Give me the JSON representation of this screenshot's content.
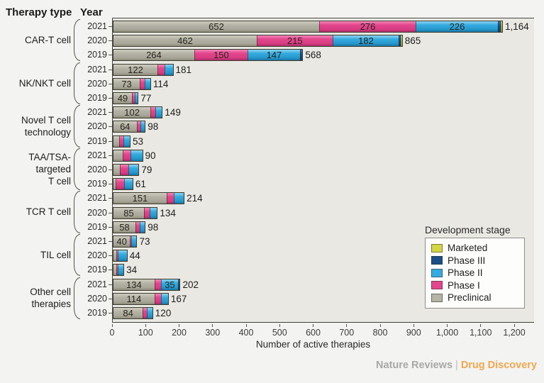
{
  "header": {
    "therapy_type": "Therapy type",
    "year": "Year"
  },
  "footer": {
    "journal": "Nature Reviews",
    "separator": "|",
    "publication": "Drug Discovery"
  },
  "chart_data": {
    "type": "bar",
    "orientation": "horizontal",
    "stacked": true,
    "xlabel": "Number of active therapies",
    "xlim": [
      0,
      1250
    ],
    "xtick_values": [
      0,
      100,
      200,
      300,
      400,
      500,
      600,
      700,
      800,
      900,
      1000,
      1100,
      1200
    ],
    "xtick_labels": [
      "0",
      "100",
      "200",
      "300",
      "400",
      "500",
      "600",
      "700",
      "800",
      "900",
      "1,000",
      "1,100",
      "1,200"
    ],
    "stage_order": [
      "preclinical",
      "phase1",
      "phase2",
      "phase3",
      "marketed"
    ],
    "stage_colors": {
      "preclinical": "#b5b3a5",
      "phase1": "#e2468c",
      "phase2": "#35abdf",
      "phase3": "#1b4f87",
      "marketed": "#d4d545"
    },
    "legend": {
      "title": "Development stage",
      "position": "bottom-right",
      "entries": [
        {
          "stage": "marketed",
          "label": "Marketed",
          "color": "#d4d545"
        },
        {
          "stage": "phase3",
          "label": "Phase III",
          "color": "#1b4f87"
        },
        {
          "stage": "phase2",
          "label": "Phase II",
          "color": "#35abdf"
        },
        {
          "stage": "phase1",
          "label": "Phase I",
          "color": "#e2468c"
        },
        {
          "stage": "preclinical",
          "label": "Preclinical",
          "color": "#b5b3a5"
        }
      ]
    },
    "groups": [
      {
        "label": "CAR-T cell",
        "label_lines": [
          "CAR-T cell"
        ],
        "bars": [
          {
            "year": "2021",
            "values": {
              "preclinical": 652,
              "phase1": 276,
              "phase2": 226,
              "phase3": 7,
              "marketed": 3
            },
            "segment_labels": {
              "preclinical": "652",
              "phase1": "276",
              "phase2": "226"
            },
            "total": 1164,
            "total_label": "1,164"
          },
          {
            "year": "2020",
            "values": {
              "preclinical": 462,
              "phase1": 215,
              "phase2": 182,
              "phase3": 5,
              "marketed": 1
            },
            "segment_labels": {
              "preclinical": "462",
              "phase1": "215",
              "phase2": "182"
            },
            "total": 865,
            "total_label": "865"
          },
          {
            "year": "2019",
            "values": {
              "preclinical": 264,
              "phase1": 150,
              "phase2": 147,
              "phase3": 7,
              "marketed": 0
            },
            "segment_labels": {
              "preclinical": "264",
              "phase1": "150",
              "phase2": "147"
            },
            "total": 568,
            "total_label": "568"
          }
        ]
      },
      {
        "label": "NK/NKT cell",
        "label_lines": [
          "NK/NKT cell"
        ],
        "bars": [
          {
            "year": "2021",
            "values": {
              "preclinical": 122,
              "phase1": 28,
              "phase2": 31,
              "phase3": 0,
              "marketed": 0
            },
            "segment_labels": {
              "preclinical": "122"
            },
            "total": 181,
            "total_label": "181"
          },
          {
            "year": "2020",
            "values": {
              "preclinical": 73,
              "phase1": 18,
              "phase2": 23,
              "phase3": 0,
              "marketed": 0
            },
            "segment_labels": {
              "preclinical": "73"
            },
            "total": 114,
            "total_label": "114"
          },
          {
            "year": "2019",
            "values": {
              "preclinical": 49,
              "phase1": 13,
              "phase2": 15,
              "phase3": 0,
              "marketed": 0
            },
            "segment_labels": {
              "preclinical": "49"
            },
            "total": 77,
            "total_label": "77"
          }
        ]
      },
      {
        "label": "Novel T cell technology",
        "label_lines": [
          "Novel T cell",
          "technology"
        ],
        "bars": [
          {
            "year": "2021",
            "values": {
              "preclinical": 102,
              "phase1": 19,
              "phase2": 28,
              "phase3": 0,
              "marketed": 0
            },
            "segment_labels": {
              "preclinical": "102"
            },
            "total": 149,
            "total_label": "149"
          },
          {
            "year": "2020",
            "values": {
              "preclinical": 64,
              "phase1": 17,
              "phase2": 17,
              "phase3": 0,
              "marketed": 0
            },
            "segment_labels": {
              "preclinical": "64"
            },
            "total": 98,
            "total_label": "98"
          },
          {
            "year": "2019",
            "values": {
              "preclinical": 21,
              "phase1": 13,
              "phase2": 19,
              "phase3": 0,
              "marketed": 0
            },
            "segment_labels": {},
            "total": 53,
            "total_label": "53"
          }
        ]
      },
      {
        "label": "TAA/TSA-targeted T cell",
        "label_lines": [
          "TAA/TSA-",
          "targeted",
          "T cell"
        ],
        "bars": [
          {
            "year": "2021",
            "values": {
              "preclinical": 30,
              "phase1": 24,
              "phase2": 36,
              "phase3": 0,
              "marketed": 0
            },
            "segment_labels": {},
            "total": 90,
            "total_label": "90"
          },
          {
            "year": "2020",
            "values": {
              "preclinical": 21,
              "phase1": 26,
              "phase2": 32,
              "phase3": 0,
              "marketed": 0
            },
            "segment_labels": {},
            "total": 79,
            "total_label": "79"
          },
          {
            "year": "2019",
            "values": {
              "preclinical": 8,
              "phase1": 26,
              "phase2": 27,
              "phase3": 0,
              "marketed": 0
            },
            "segment_labels": {},
            "total": 61,
            "total_label": "61"
          }
        ]
      },
      {
        "label": "TCR T cell",
        "label_lines": [
          "TCR T cell"
        ],
        "bars": [
          {
            "year": "2021",
            "values": {
              "preclinical": 151,
              "phase1": 27,
              "phase2": 36,
              "phase3": 0,
              "marketed": 0
            },
            "segment_labels": {
              "preclinical": "151"
            },
            "total": 214,
            "total_label": "214"
          },
          {
            "year": "2020",
            "values": {
              "preclinical": 85,
              "phase1": 21,
              "phase2": 28,
              "phase3": 0,
              "marketed": 0
            },
            "segment_labels": {
              "preclinical": "85"
            },
            "total": 134,
            "total_label": "134"
          },
          {
            "year": "2019",
            "values": {
              "preclinical": 58,
              "phase1": 19,
              "phase2": 21,
              "phase3": 0,
              "marketed": 0
            },
            "segment_labels": {
              "preclinical": "58"
            },
            "total": 98,
            "total_label": "98"
          }
        ]
      },
      {
        "label": "TIL cell",
        "label_lines": [
          "TIL cell"
        ],
        "bars": [
          {
            "year": "2021",
            "values": {
              "preclinical": 40,
              "phase1": 5,
              "phase2": 28,
              "phase3": 0,
              "marketed": 0
            },
            "segment_labels": {
              "preclinical": "40"
            },
            "total": 73,
            "total_label": "73"
          },
          {
            "year": "2020",
            "values": {
              "preclinical": 10,
              "phase1": 4,
              "phase2": 30,
              "phase3": 0,
              "marketed": 0
            },
            "segment_labels": {},
            "total": 44,
            "total_label": "44"
          },
          {
            "year": "2019",
            "values": {
              "preclinical": 10,
              "phase1": 4,
              "phase2": 20,
              "phase3": 0,
              "marketed": 0
            },
            "segment_labels": {},
            "total": 34,
            "total_label": "34"
          }
        ]
      },
      {
        "label": "Other cell therapies",
        "label_lines": [
          "Other cell",
          "therapies"
        ],
        "bars": [
          {
            "year": "2021",
            "values": {
              "preclinical": 134,
              "phase1": 29,
              "phase2": 35,
              "phase3": 4,
              "marketed": 0
            },
            "segment_labels": {
              "preclinical": "134",
              "phase2": "35"
            },
            "total": 202,
            "total_label": "202"
          },
          {
            "year": "2020",
            "values": {
              "preclinical": 114,
              "phase1": 24,
              "phase2": 29,
              "phase3": 0,
              "marketed": 0
            },
            "segment_labels": {
              "preclinical": "114"
            },
            "total": 167,
            "total_label": "167"
          },
          {
            "year": "2019",
            "values": {
              "preclinical": 84,
              "phase1": 14,
              "phase2": 22,
              "phase3": 0,
              "marketed": 0
            },
            "segment_labels": {
              "preclinical": "84"
            },
            "total": 120,
            "total_label": "120"
          }
        ]
      }
    ]
  }
}
